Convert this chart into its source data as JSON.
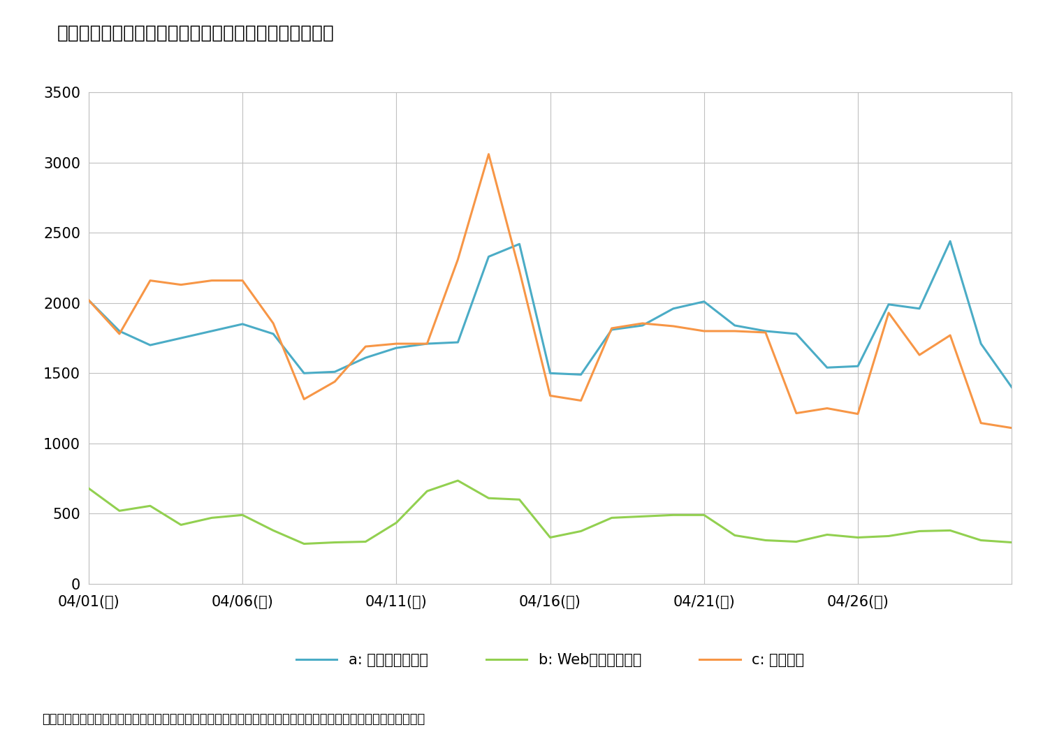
{
  "title": "図表６　投稿契機区分別に見た年金ツイートの投稿者数",
  "note": "（注１）同一のユーザーが同日に同じ投稿契機区分で複数の年金ツイートを投稿していても、１名と数えている。",
  "x_labels": [
    "04/01(土)",
    "04/06(木)",
    "04/11(火)",
    "04/16(日)",
    "04/21(金)",
    "04/26(水)"
  ],
  "x_tick_positions": [
    0,
    5,
    10,
    15,
    20,
    25
  ],
  "ylim": [
    0,
    3500
  ],
  "yticks": [
    0,
    500,
    1000,
    1500,
    2000,
    2500,
    3000,
    3500
  ],
  "series_a_label": "a: ツイートが契機",
  "series_b_label": "b: Webページが契機",
  "series_c_label": "c: 単独投稿",
  "color_a": "#4bacc6",
  "color_b": "#92d050",
  "color_c": "#f79646",
  "series_a": [
    2020,
    1800,
    1700,
    1750,
    1800,
    1850,
    1780,
    1500,
    1510,
    1610,
    1680,
    1710,
    1720,
    2330,
    2420,
    1500,
    1490,
    1810,
    1840,
    1960,
    2010,
    1840,
    1800,
    1780,
    1540,
    1550,
    1990,
    1960,
    2440,
    1710,
    1400
  ],
  "series_b": [
    680,
    520,
    555,
    420,
    470,
    490,
    380,
    285,
    295,
    300,
    435,
    660,
    735,
    610,
    600,
    330,
    375,
    470,
    480,
    490,
    490,
    345,
    310,
    300,
    350,
    330,
    340,
    375,
    380,
    310,
    295
  ],
  "series_c": [
    2020,
    1780,
    2160,
    2130,
    2160,
    2160,
    1855,
    1315,
    1440,
    1690,
    1710,
    1710,
    2310,
    3060,
    2230,
    1340,
    1305,
    1820,
    1855,
    1835,
    1800,
    1800,
    1790,
    1215,
    1250,
    1210,
    1930,
    1630,
    1770,
    1145,
    1110
  ],
  "num_days": 31,
  "background_color": "#ffffff",
  "grid_color": "#c0c0c0",
  "linewidth": 2.2
}
